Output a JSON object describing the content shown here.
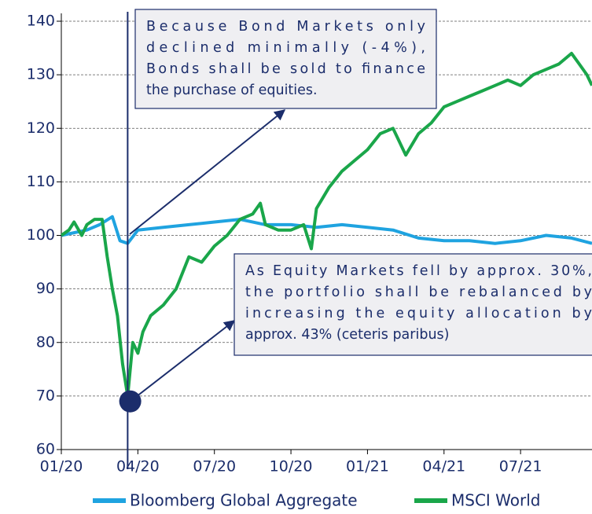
{
  "chart_data": {
    "type": "line",
    "x": null,
    "xlim": [
      0,
      20.8
    ],
    "xticks": [
      {
        "value": 0,
        "label": "01/20"
      },
      {
        "value": 3,
        "label": "04/20"
      },
      {
        "value": 6,
        "label": "07/20"
      },
      {
        "value": 9,
        "label": "10/20"
      },
      {
        "value": 12,
        "label": "01/21"
      },
      {
        "value": 15,
        "label": "04/21"
      },
      {
        "value": 18,
        "label": "07/21"
      }
    ],
    "ylim": [
      60,
      140
    ],
    "yticks": [
      60,
      70,
      80,
      90,
      100,
      110,
      120,
      130,
      140
    ],
    "grid": true,
    "legend": "bottom",
    "series": [
      {
        "name": "Bloomberg Global Aggregate",
        "color": "#1fa3e0",
        "x": [
          0,
          1,
          1.5,
          2.0,
          2.3,
          2.6,
          3,
          4,
          5,
          6,
          7,
          8,
          9,
          10,
          11,
          12,
          13,
          14,
          15,
          16,
          17,
          18,
          19,
          20,
          20.8
        ],
        "values": [
          100,
          101,
          102,
          103.5,
          99,
          98.5,
          101,
          101.5,
          102,
          102.5,
          103,
          102,
          102,
          101.5,
          102,
          101.5,
          101,
          99.5,
          99,
          99,
          98.5,
          99,
          100,
          99.5,
          98.5
        ]
      },
      {
        "name": "MSCI World",
        "color": "#1aa64a",
        "x": [
          0,
          0.3,
          0.5,
          0.8,
          1.0,
          1.3,
          1.6,
          1.8,
          2.0,
          2.2,
          2.4,
          2.6,
          2.8,
          3.0,
          3.2,
          3.5,
          4.0,
          4.5,
          5.0,
          5.5,
          6.0,
          6.5,
          7.0,
          7.5,
          7.8,
          8.0,
          8.5,
          9.0,
          9.5,
          9.8,
          10.0,
          10.5,
          11.0,
          11.5,
          12.0,
          12.5,
          13.0,
          13.3,
          13.5,
          14.0,
          14.5,
          15.0,
          15.5,
          16.0,
          16.5,
          17.0,
          17.5,
          18.0,
          18.5,
          19.0,
          19.5,
          20.0,
          20.3,
          20.6,
          20.8
        ],
        "values": [
          100,
          101,
          102.5,
          100,
          102,
          103,
          103,
          96,
          90,
          85,
          76,
          70,
          80,
          78,
          82,
          85,
          87,
          90,
          96,
          95,
          98,
          100,
          103,
          104,
          106,
          102,
          101,
          101,
          102,
          97.5,
          105,
          109,
          112,
          114,
          116,
          119,
          120,
          117,
          115,
          119,
          121,
          124,
          125,
          126,
          127,
          128,
          129,
          128,
          130,
          131,
          132,
          134,
          132,
          130,
          128
        ]
      }
    ],
    "highlight": {
      "x": 2.7,
      "y": 69
    },
    "reference_line": {
      "x": 2.6
    },
    "annotations": [
      {
        "lines": [
          "Because Bond Markets only",
          "declined minimally (-4%),",
          "Bonds shall be sold to finance",
          "the purchase of equities."
        ]
      },
      {
        "lines": [
          "As Equity Markets fell by approx. 30%,",
          "the portfolio shall be rebalanced by",
          "increasing the equity allocation by",
          "approx. 43% (ceteris paribus)"
        ]
      }
    ]
  }
}
